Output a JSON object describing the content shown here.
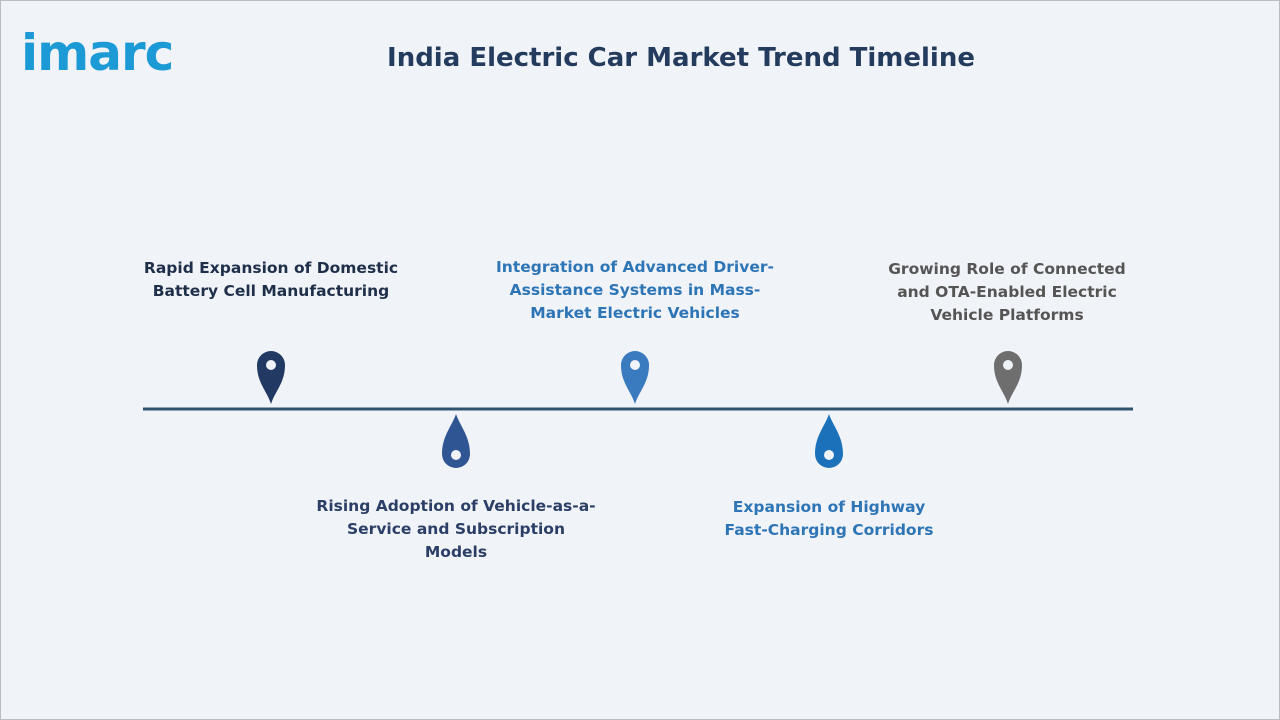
{
  "header": {
    "logo": "imarc",
    "title": "India Electric Car Market Trend Timeline"
  },
  "timeline": {
    "items": [
      {
        "label": "Rapid Expansion of Domestic Battery Cell Manufacturing"
      },
      {
        "label": "Rising Adoption of Vehicle-as-a-Service and Subscription Models"
      },
      {
        "label": "Integration of Advanced Driver-Assistance Systems in Mass-Market Electric Vehicles"
      },
      {
        "label": "Expansion of Highway Fast-Charging Corridors"
      },
      {
        "label": "Growing Role of Connected and OTA-Enabled Electric Vehicle Platforms"
      }
    ]
  }
}
